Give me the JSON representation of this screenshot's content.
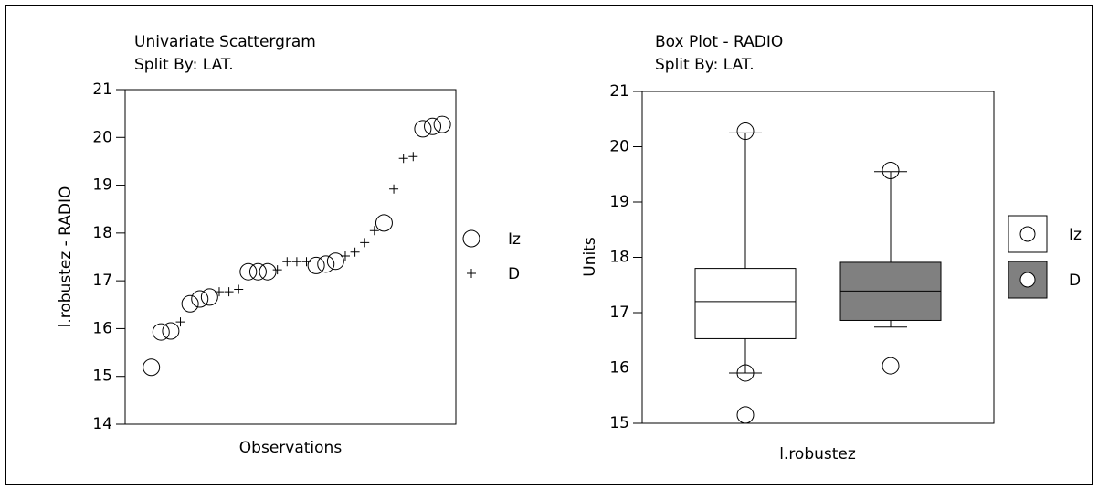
{
  "chart_data": [
    {
      "type": "scatter",
      "title": "Univariate Scattergram",
      "subtitle": "Split By: LAT.",
      "x_label": "Observations",
      "y_label": "l.robustez - RADIO",
      "xlim": [
        -1.7,
        32.4
      ],
      "ylim": [
        14,
        21
      ],
      "yticks": [
        14,
        15,
        16,
        17,
        18,
        19,
        20,
        21
      ],
      "legend": "right",
      "series": [
        {
          "name": "Iz",
          "marker": "circle",
          "color": "#000000",
          "x": [
            1,
            2,
            3,
            5,
            6,
            7,
            11,
            12,
            13,
            18,
            19,
            20,
            25,
            29,
            30,
            31
          ],
          "values": [
            15.19,
            15.93,
            15.95,
            16.52,
            16.62,
            16.66,
            17.19,
            17.19,
            17.19,
            17.32,
            17.35,
            17.41,
            18.21,
            20.18,
            20.23,
            20.27
          ]
        },
        {
          "name": "D",
          "marker": "plus",
          "color": "#000000",
          "x": [
            4,
            8,
            9,
            10,
            14,
            15,
            16,
            17,
            21,
            22,
            23,
            24,
            26,
            27,
            28
          ],
          "values": [
            16.14,
            16.77,
            16.77,
            16.82,
            17.23,
            17.4,
            17.4,
            17.4,
            17.52,
            17.6,
            17.8,
            18.05,
            18.92,
            19.56,
            19.6
          ]
        }
      ]
    },
    {
      "type": "box",
      "title": "Box Plot - RADIO",
      "subtitle": "Split By: LAT.",
      "x_label": "l.robustez",
      "y_label": "Units",
      "ylim": [
        15,
        21
      ],
      "yticks": [
        15,
        16,
        17,
        18,
        19,
        20,
        21
      ],
      "legend": "right",
      "series": [
        {
          "name": "Iz",
          "color": "#ffffff",
          "q1": 16.53,
          "median": 17.2,
          "q3": 17.8,
          "whisker_low": 15.91,
          "whisker_high": 20.25,
          "outliers": [
            20.28,
            15.91,
            15.15
          ]
        },
        {
          "name": "D",
          "color": "#808080",
          "q1": 16.86,
          "median": 17.39,
          "q3": 17.91,
          "whisker_low": 16.74,
          "whisker_high": 19.55,
          "outliers": [
            19.57,
            16.04
          ]
        }
      ]
    }
  ]
}
